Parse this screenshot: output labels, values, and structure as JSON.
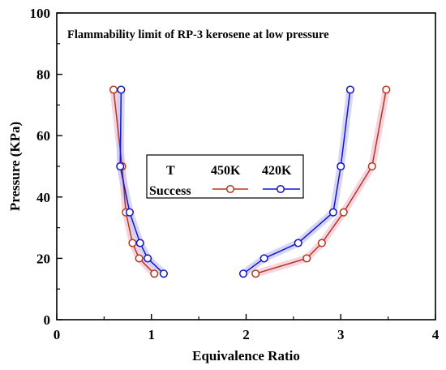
{
  "chart_data": {
    "type": "line",
    "title": "Flammability limit of RP-3 kerosene at low pressure",
    "xlabel": "Equivalence Ratio",
    "ylabel": "Pressure (KPa)",
    "xlim": [
      0,
      4
    ],
    "ylim": [
      0,
      100
    ],
    "xticks": [
      "0",
      "1",
      "2",
      "3",
      "4"
    ],
    "yticks": [
      "0",
      "20",
      "40",
      "60",
      "80",
      "100"
    ],
    "grid": false,
    "legend": {
      "placement": "center",
      "header_col1": "T",
      "header_col2": "Success",
      "header_series1": "450K",
      "header_series2": "420K"
    },
    "series": [
      {
        "name": "450K",
        "color": "#b5361f",
        "halo": "#f2c6d6",
        "lean": {
          "x": [
            0.6,
            0.69,
            0.73,
            0.8,
            0.87,
            1.03
          ],
          "y": [
            75,
            50,
            35,
            25,
            20,
            15
          ]
        },
        "rich": {
          "x": [
            2.1,
            2.64,
            2.8,
            3.03,
            3.33,
            3.48
          ],
          "y": [
            15,
            20,
            25,
            35,
            50,
            75
          ]
        }
      },
      {
        "name": "420K",
        "color": "#1414c8",
        "halo": "#c7c7f4",
        "lean": {
          "x": [
            0.68,
            0.67,
            0.77,
            0.88,
            0.96,
            1.13
          ],
          "y": [
            75,
            50,
            35,
            25,
            20,
            15
          ]
        },
        "rich": {
          "x": [
            1.97,
            2.19,
            2.55,
            2.92,
            3.0,
            3.1
          ],
          "y": [
            15,
            20,
            25,
            35,
            50,
            75
          ]
        }
      }
    ]
  }
}
